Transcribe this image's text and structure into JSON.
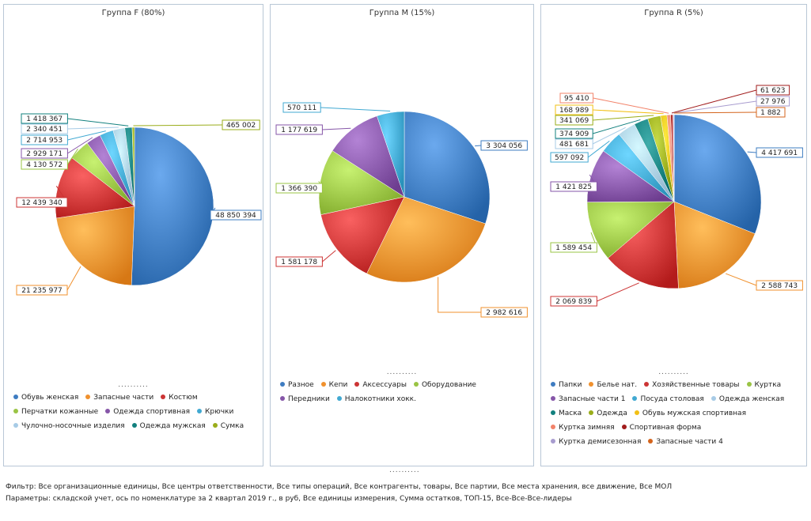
{
  "chart_data": [
    {
      "type": "pie",
      "title": "Группа F (80%)",
      "slices": [
        {
          "label": "Обувь женская",
          "value": 48850394,
          "value_label": "48 850 394",
          "color": "#3e7cc1"
        },
        {
          "label": "Запасные части",
          "value": 21235977,
          "value_label": "21 235 977",
          "color": "#f0912e"
        },
        {
          "label": "Костюм",
          "value": 12439340,
          "value_label": "12 439 340",
          "color": "#cc3434"
        },
        {
          "label": "Перчатки кожанные",
          "value": 4130572,
          "value_label": "4 130 572",
          "color": "#9ac444"
        },
        {
          "label": "Одежда спортивная",
          "value": 2929171,
          "value_label": "2 929 171",
          "color": "#8656a8"
        },
        {
          "label": "Крючки",
          "value": 2714953,
          "value_label": "2 714 953",
          "color": "#41a9d2"
        },
        {
          "label": "Чулочно-носочные изделия",
          "value": 2340451,
          "value_label": "2 340 451",
          "color": "#a7cbe6"
        },
        {
          "label": "Одежда мужская",
          "value": 1418367,
          "value_label": "1 418 367",
          "color": "#12807e"
        },
        {
          "label": "Сумка",
          "value": 465002,
          "value_label": "465 002",
          "color": "#9aad1a"
        }
      ],
      "legend_position": "bottom"
    },
    {
      "type": "pie",
      "title": "Группа M (15%)",
      "slices": [
        {
          "label": "Разное",
          "value": 3304056,
          "value_label": "3 304 056",
          "color": "#3e7cc1"
        },
        {
          "label": "Кепи",
          "value": 2982616,
          "value_label": "2 982 616",
          "color": "#f0912e"
        },
        {
          "label": "Аксессуары",
          "value": 1581178,
          "value_label": "1 581 178",
          "color": "#cc3434"
        },
        {
          "label": "Оборудование",
          "value": 1366390,
          "value_label": "1 366 390",
          "color": "#9ac444"
        },
        {
          "label": "Передники",
          "value": 1177619,
          "value_label": "1 177 619",
          "color": "#8656a8"
        },
        {
          "label": "Налокотники хокк.",
          "value": 570111,
          "value_label": "570 111",
          "color": "#41a9d2"
        }
      ],
      "legend_position": "bottom"
    },
    {
      "type": "pie",
      "title": "Группа R (5%)",
      "slices": [
        {
          "label": "Папки",
          "value": 4417691,
          "value_label": "4 417 691",
          "color": "#3e7cc1"
        },
        {
          "label": "Белье нат.",
          "value": 2588743,
          "value_label": "2 588 743",
          "color": "#f0912e"
        },
        {
          "label": "Хозяйственные товары",
          "value": 2069839,
          "value_label": "2 069 839",
          "color": "#cc3434"
        },
        {
          "label": "Куртка",
          "value": 1589454,
          "value_label": "1 589 454",
          "color": "#9ac444"
        },
        {
          "label": "Запасные части 1",
          "value": 1421825,
          "value_label": "1 421 825",
          "color": "#8656a8"
        },
        {
          "label": "Посуда столовая",
          "value": 597092,
          "value_label": "597 092",
          "color": "#41a9d2"
        },
        {
          "label": "Одежда женская",
          "value": 481681,
          "value_label": "481 681",
          "color": "#a7cbe6"
        },
        {
          "label": "Маска",
          "value": 374909,
          "value_label": "374 909",
          "color": "#12807e"
        },
        {
          "label": "Одежда",
          "value": 341069,
          "value_label": "341 069",
          "color": "#9aad1a"
        },
        {
          "label": "Обувь мужская спортивная",
          "value": 168989,
          "value_label": "168 989",
          "color": "#f2c015"
        },
        {
          "label": "Куртка зимняя",
          "value": 95410,
          "value_label": "95 410",
          "color": "#f2836a"
        },
        {
          "label": "Спортивная форма",
          "value": 61623,
          "value_label": "61 623",
          "color": "#a11c1c"
        },
        {
          "label": "Куртка демисезонная",
          "value": 27976,
          "value_label": "27 976",
          "color": "#a89ccf"
        },
        {
          "label": "Запасные части 4",
          "value": 1882,
          "value_label": "1 882",
          "color": "#d4641c"
        }
      ],
      "legend_position": "bottom"
    }
  ],
  "dots": "..........",
  "footer": {
    "filter": "Фильтр: Все организационные единицы, Все центры ответственности, Все типы операций, Все контрагенты, товары, Все партии, Все места хранения, все движение, Все МОЛ",
    "params": "Параметры: складской учет, ось по номенклатуре за 2 квартал 2019 г., в руб, Все единицы измерения, Сумма остатков, ТОП-15, Все-Все-Все-лидеры"
  }
}
